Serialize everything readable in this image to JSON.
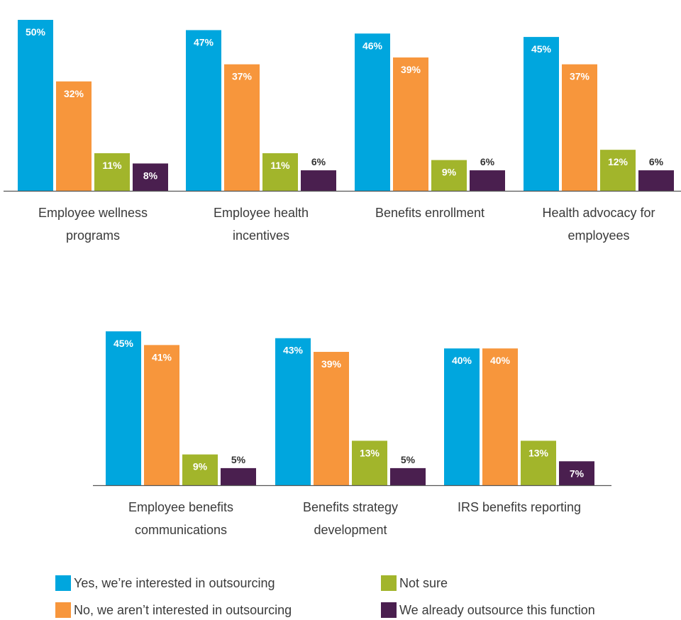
{
  "chart_data": [
    {
      "type": "bar",
      "categories": [
        [
          "Employee wellness",
          "programs"
        ],
        [
          "Employee health",
          "incentives"
        ],
        [
          "Benefits enrollment"
        ],
        [
          "Health advocacy for",
          "employees"
        ]
      ],
      "series": [
        {
          "name": "Yes, we’re interested in outsourcing",
          "values": [
            50,
            47,
            46,
            45
          ]
        },
        {
          "name": "No, we aren’t interested in outsourcing",
          "values": [
            32,
            37,
            39,
            37
          ]
        },
        {
          "name": "Not sure",
          "values": [
            11,
            11,
            9,
            12
          ]
        },
        {
          "name": "We already outsource this function",
          "values": [
            8,
            6,
            6,
            6
          ]
        }
      ],
      "ylim": [
        0,
        50
      ],
      "unit": "%"
    },
    {
      "type": "bar",
      "categories": [
        [
          "Employee benefits",
          "communications"
        ],
        [
          "Benefits strategy",
          "development"
        ],
        [
          "IRS benefits reporting"
        ]
      ],
      "series": [
        {
          "name": "Yes, we’re interested in outsourcing",
          "values": [
            45,
            43,
            40
          ]
        },
        {
          "name": "No, we aren’t interested in outsourcing",
          "values": [
            41,
            39,
            40
          ]
        },
        {
          "name": "Not sure",
          "values": [
            9,
            13,
            13
          ]
        },
        {
          "name": "We already outsource this function",
          "values": [
            5,
            5,
            7
          ]
        }
      ],
      "ylim": [
        0,
        50
      ],
      "unit": "%"
    }
  ],
  "colors": {
    "yes": "#00a6de",
    "no": "#f7963c",
    "not_sure": "#a2b52b",
    "already": "#4a1f4f",
    "axis": "#555555",
    "inside_label": "#ffffff",
    "outside_label": "#333333"
  },
  "legend": {
    "items": [
      {
        "label": "Yes, we’re interested in outsourcing",
        "color": "#00a6de"
      },
      {
        "label": "No, we aren’t interested in outsourcing",
        "color": "#f7963c"
      },
      {
        "label": "Not sure",
        "color": "#a2b52b"
      },
      {
        "label": "We already outsource this function",
        "color": "#4a1f4f"
      }
    ]
  }
}
